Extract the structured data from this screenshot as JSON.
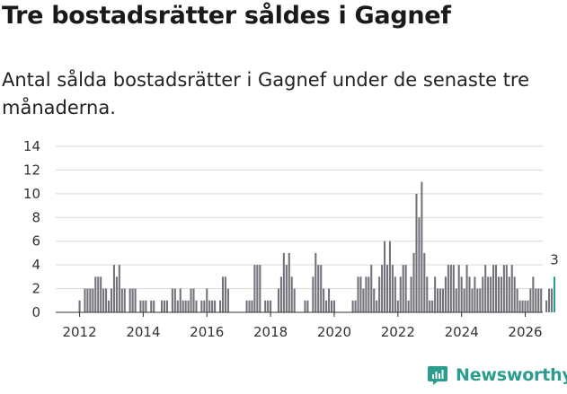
{
  "title": "Tre bostadsrätter såldes i Gagnef",
  "subtitle": "Antal sålda bostadsrätter i Gagnef under de senaste tre månaderna.",
  "brand": {
    "name": "Newsworthy",
    "icon": "newsworthy-logo-icon"
  },
  "colors": {
    "bar": "#73727a",
    "highlight": "#2a9d8f",
    "grid": "#d9d9d9",
    "axis": "#333333",
    "text": "#333333"
  },
  "chart_data": {
    "type": "bar",
    "title": "Tre bostadsrätter såldes i Gagnef",
    "xlabel": "",
    "ylabel": "",
    "ylim": [
      0,
      14
    ],
    "yticks": [
      0,
      2,
      4,
      6,
      8,
      10,
      12,
      14
    ],
    "xlim": [
      2011.25,
      2026.55
    ],
    "xticks": [
      2012,
      2014,
      2016,
      2018,
      2020,
      2022,
      2024,
      2026
    ],
    "bar_width_months": 0.7,
    "start": 2012.0,
    "step": 0.08333,
    "values": [
      1,
      0,
      2,
      2,
      2,
      2,
      3,
      3,
      3,
      2,
      2,
      1,
      2,
      4,
      3,
      4,
      2,
      2,
      0,
      2,
      2,
      2,
      0,
      1,
      1,
      1,
      0,
      1,
      1,
      0,
      0,
      1,
      1,
      1,
      0,
      2,
      2,
      1,
      2,
      1,
      1,
      1,
      2,
      2,
      1,
      0,
      1,
      1,
      2,
      1,
      1,
      1,
      0,
      1,
      3,
      3,
      2,
      0,
      0,
      0,
      0,
      0,
      0,
      1,
      1,
      1,
      4,
      4,
      4,
      0,
      1,
      1,
      1,
      0,
      0,
      2,
      3,
      5,
      4,
      5,
      3,
      2,
      0,
      0,
      0,
      1,
      1,
      0,
      3,
      5,
      4,
      4,
      2,
      1,
      2,
      1,
      1,
      0,
      0,
      0,
      0,
      0,
      0,
      1,
      1,
      3,
      3,
      2,
      3,
      3,
      4,
      2,
      1,
      3,
      4,
      6,
      4,
      6,
      4,
      3,
      1,
      3,
      4,
      4,
      1,
      3,
      5,
      10,
      8,
      11,
      5,
      3,
      1,
      1,
      3,
      2,
      2,
      2,
      3,
      4,
      4,
      4,
      2,
      4,
      3,
      2,
      4,
      3,
      2,
      3,
      2,
      2,
      3,
      4,
      3,
      3,
      4,
      4,
      3,
      3,
      4,
      4,
      3,
      4,
      3,
      2,
      1,
      1,
      1,
      1,
      2,
      3,
      2,
      2,
      2,
      0,
      1,
      2,
      2,
      3
    ],
    "highlight_index": 179,
    "annotations": [
      {
        "label": "3",
        "index": 179
      }
    ]
  }
}
